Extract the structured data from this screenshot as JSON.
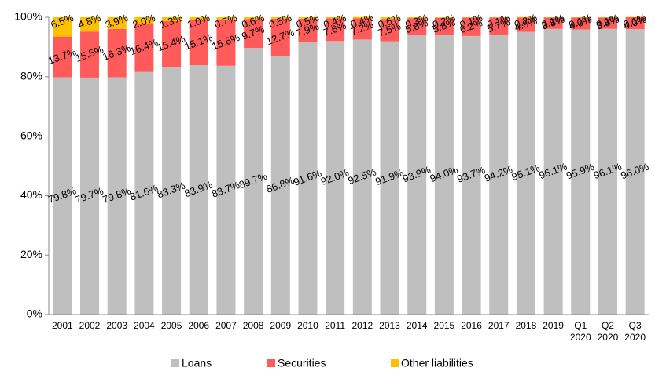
{
  "chart_data": {
    "type": "stacked-bar",
    "categories": [
      "2001",
      "2002",
      "2003",
      "2004",
      "2005",
      "2006",
      "2007",
      "2008",
      "2009",
      "2010",
      "2011",
      "2012",
      "2013",
      "2014",
      "2015",
      "2016",
      "2017",
      "2018",
      "2019",
      "Q1 2020",
      "Q2 2020",
      "Q3 2020"
    ],
    "series": [
      {
        "name": "Loans",
        "color": "#bfbfbf",
        "values": [
          79.8,
          79.7,
          79.8,
          81.6,
          83.3,
          83.9,
          83.7,
          89.7,
          86.8,
          91.6,
          92.0,
          92.5,
          91.9,
          93.9,
          94.0,
          93.7,
          94.2,
          95.1,
          96.1,
          95.9,
          96.1,
          96.0
        ],
        "value_labels": [
          "79.8%",
          "79.7%",
          "79.8%",
          "81.6%",
          "83.3%",
          "83.9%",
          "83.7%",
          "89.7%",
          "86.8%",
          "91.6%",
          "92.0%",
          "92.5%",
          "91.9%",
          "93.9%",
          "94.0%",
          "93.7%",
          "94.2%",
          "95.1%",
          "96.1%",
          "95.9%",
          "96.1%",
          "96.0%"
        ]
      },
      {
        "name": "Securities",
        "color": "#ff5b5b",
        "values": [
          13.7,
          15.5,
          16.3,
          16.4,
          15.4,
          15.1,
          15.6,
          9.7,
          12.7,
          7.9,
          7.6,
          7.2,
          7.5,
          5.8,
          5.8,
          6.2,
          5.7,
          4.8,
          3.8,
          4.0,
          3.8,
          4.0
        ],
        "value_labels": [
          "13.7%",
          "15.5%",
          "16.3%",
          "16.4%",
          "15.4%",
          "15.1%",
          "15.6%",
          "9.7%",
          "12.7%",
          "7.9%",
          "7.6%",
          "7.2%",
          "7.5%",
          "5.8%",
          "5.8%",
          "6.2%",
          "5.7%",
          "4.8%",
          "3.8%",
          "4.0%",
          "3.8%",
          "4.0%"
        ]
      },
      {
        "name": "Other liabilities",
        "color": "#ffc000",
        "values": [
          6.5,
          4.8,
          3.9,
          2.0,
          1.3,
          1.0,
          0.7,
          0.6,
          0.5,
          0.5,
          0.4,
          0.4,
          0.6,
          0.3,
          0.2,
          0.1,
          0.1,
          0.2,
          0.1,
          0.1,
          0.1,
          0.1
        ],
        "value_labels": [
          "6.5%",
          "4.8%",
          "3.9%",
          "2.0%",
          "1.3%",
          "1.0%",
          "0.7%",
          "0.6%",
          "0.5%",
          "0.5%",
          "0.4%",
          "0.4%",
          "0.6%",
          "0.3%",
          "0.2%",
          "0.1%",
          "0.1%",
          "0.2%",
          "0.1%",
          "0.1%",
          "0.1%",
          "0.1%"
        ]
      }
    ],
    "ylim": [
      0,
      100
    ],
    "yticks": [
      {
        "value": 0,
        "label": "0%"
      },
      {
        "value": 20,
        "label": "20%"
      },
      {
        "value": 40,
        "label": "40%"
      },
      {
        "value": 60,
        "label": "60%"
      },
      {
        "value": 80,
        "label": "80%"
      },
      {
        "value": 100,
        "label": "100%"
      }
    ],
    "grid": false,
    "legend": "bottom"
  }
}
